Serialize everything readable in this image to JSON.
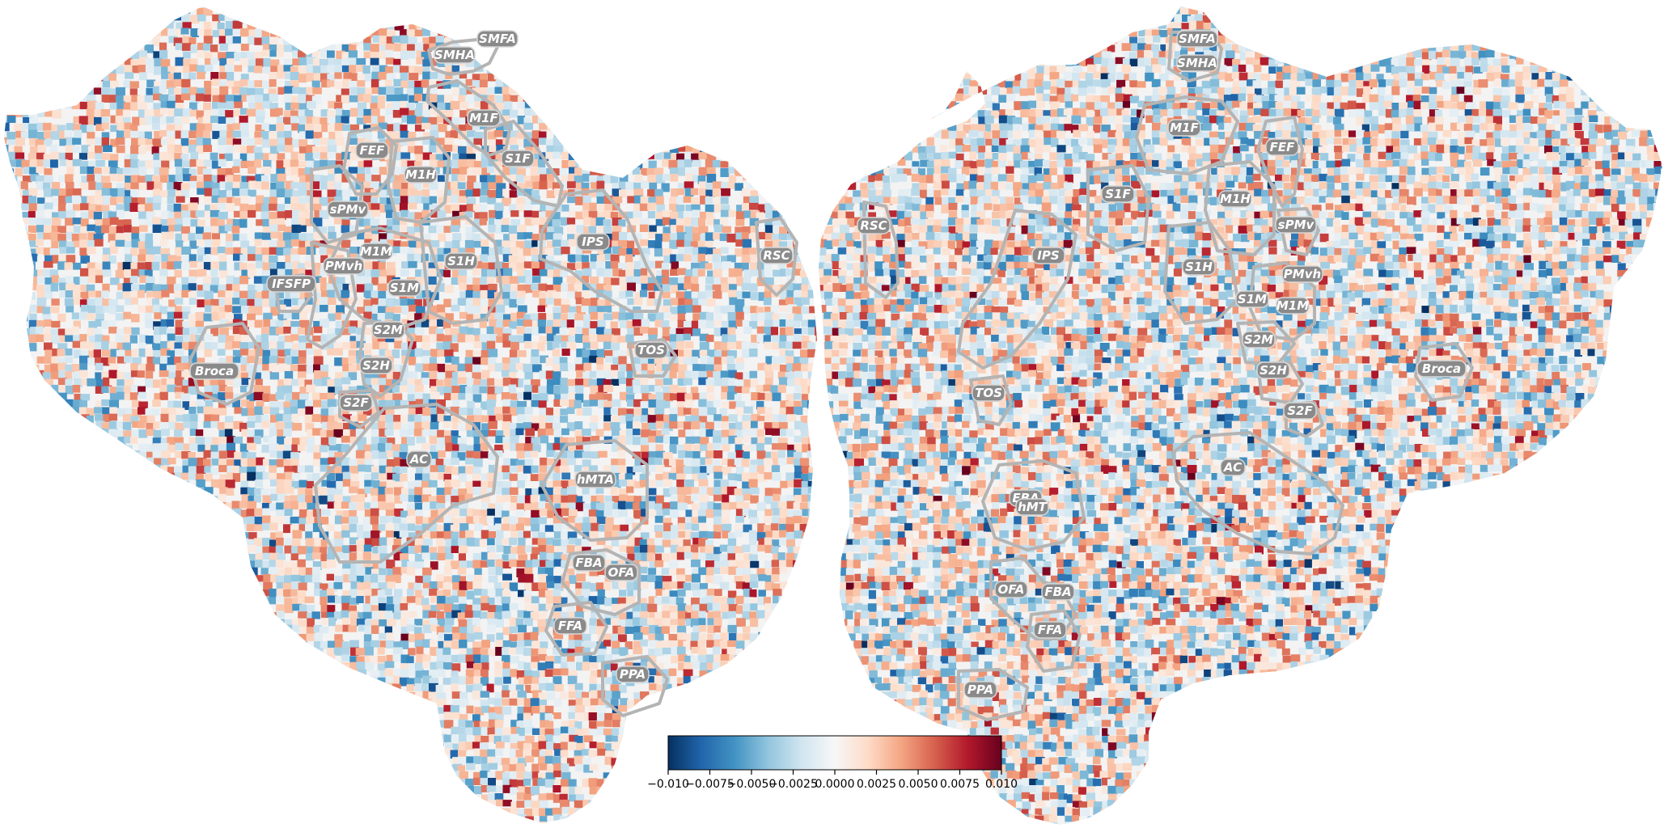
{
  "colormap": {
    "name": "RdBu_r",
    "stops": [
      "#053061",
      "#2166ac",
      "#4393c3",
      "#92c5de",
      "#d1e5f0",
      "#f7f7f7",
      "#fddbc7",
      "#f4a582",
      "#d6604d",
      "#b2182b",
      "#67001f"
    ],
    "vmin": -0.01,
    "vmax": 0.01
  },
  "colorbar": {
    "ticks": [
      -0.01,
      -0.0075,
      -0.005,
      -0.0025,
      0.0,
      0.0025,
      0.005,
      0.0075,
      0.01
    ],
    "tick_labels": [
      "−0.010",
      "−0.0075",
      "−0.0050",
      "−0.0025",
      "0.0000",
      "0.0025",
      "0.0050",
      "0.0075",
      "0.010"
    ]
  },
  "hemispheres": {
    "left": {
      "rois": [
        {
          "key": "SMFA",
          "label": "SMFA"
        },
        {
          "key": "SMHA",
          "label": "SMHA"
        },
        {
          "key": "M1F",
          "label": "M1F"
        },
        {
          "key": "S1F",
          "label": "S1F"
        },
        {
          "key": "FEF",
          "label": "FEF"
        },
        {
          "key": "M1H",
          "label": "M1H"
        },
        {
          "key": "sPMv",
          "label": "sPMv"
        },
        {
          "key": "M1M",
          "label": "M1M"
        },
        {
          "key": "PMvh",
          "label": "PMvh"
        },
        {
          "key": "S1H",
          "label": "S1H"
        },
        {
          "key": "IFSFP",
          "label": "IFSFP"
        },
        {
          "key": "S1M",
          "label": "S1M"
        },
        {
          "key": "S2M",
          "label": "S2M"
        },
        {
          "key": "S2H",
          "label": "S2H"
        },
        {
          "key": "S2F",
          "label": "S2F"
        },
        {
          "key": "Broca",
          "label": "Broca"
        },
        {
          "key": "IPS",
          "label": "IPS"
        },
        {
          "key": "RSC",
          "label": "RSC"
        },
        {
          "key": "TOS",
          "label": "TOS"
        },
        {
          "key": "AC",
          "label": "AC"
        },
        {
          "key": "hMTA",
          "label": "hMTA"
        },
        {
          "key": "FBA",
          "label": "FBA"
        },
        {
          "key": "OFA",
          "label": "OFA"
        },
        {
          "key": "FFA",
          "label": "FFA"
        },
        {
          "key": "PPA",
          "label": "PPA"
        }
      ]
    },
    "right": {
      "rois": [
        {
          "key": "SMFA",
          "label": "SMFA"
        },
        {
          "key": "SMHA",
          "label": "SMHA"
        },
        {
          "key": "M1F",
          "label": "M1F"
        },
        {
          "key": "FEF",
          "label": "FEF"
        },
        {
          "key": "S1F",
          "label": "S1F"
        },
        {
          "key": "M1H",
          "label": "M1H"
        },
        {
          "key": "RSC",
          "label": "RSC"
        },
        {
          "key": "sPMv",
          "label": "sPMv"
        },
        {
          "key": "IPS",
          "label": "IPS"
        },
        {
          "key": "S1H",
          "label": "S1H"
        },
        {
          "key": "PMvh",
          "label": "PMvh"
        },
        {
          "key": "S1M",
          "label": "S1M"
        },
        {
          "key": "M1M",
          "label": "M1M"
        },
        {
          "key": "S2M",
          "label": "S2M"
        },
        {
          "key": "Broca",
          "label": "Broca"
        },
        {
          "key": "S2H",
          "label": "S2H"
        },
        {
          "key": "TOS",
          "label": "TOS"
        },
        {
          "key": "S2F",
          "label": "S2F"
        },
        {
          "key": "AC",
          "label": "AC"
        },
        {
          "key": "EBA",
          "label": "EBA"
        },
        {
          "key": "hMT",
          "label": "hMT"
        },
        {
          "key": "OFA",
          "label": "OFA"
        },
        {
          "key": "FBA",
          "label": "FBA"
        },
        {
          "key": "FFA",
          "label": "FFA"
        },
        {
          "key": "PPA",
          "label": "PPA"
        }
      ]
    }
  }
}
